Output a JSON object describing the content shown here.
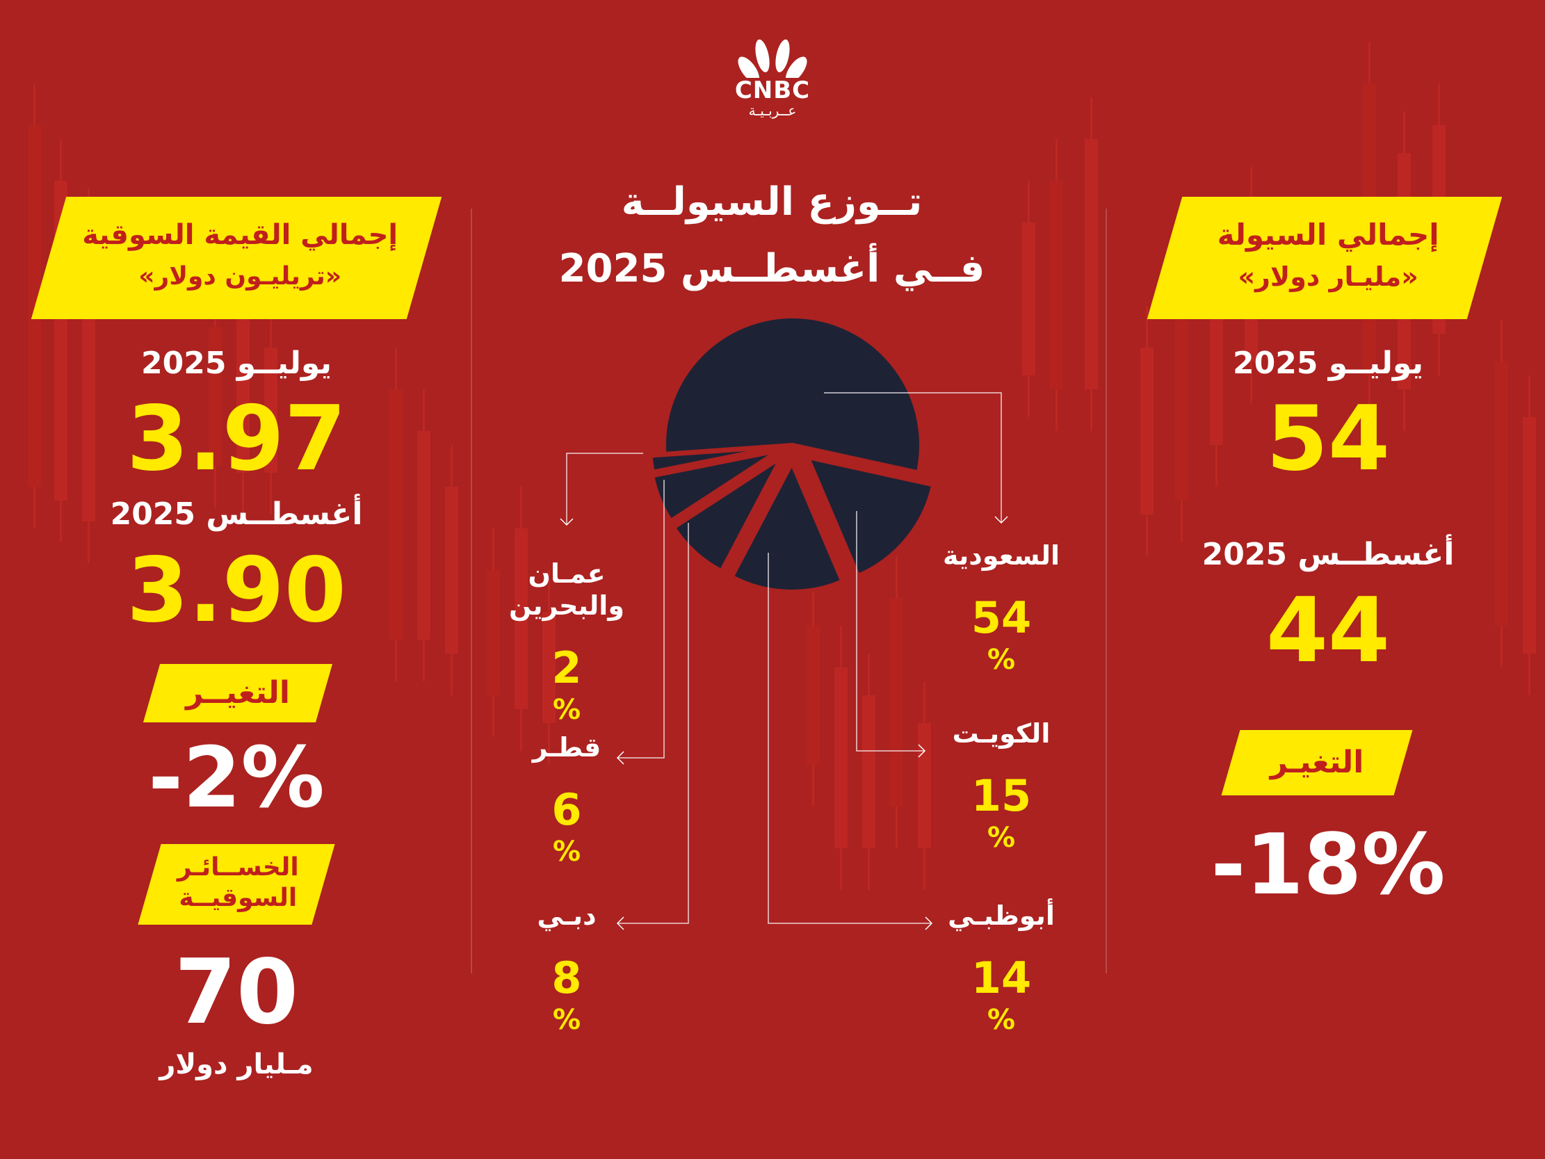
{
  "brand": {
    "name": "CNBC",
    "sub": "عــربـيـة"
  },
  "center": {
    "title_line1": "تــوزع السيولــة",
    "title_line2": "فــي أغسطــس 2025"
  },
  "left_panel": {
    "banner_line1": "إجمالي القيمة السوقية",
    "banner_line2": "«تريليـون دولار»",
    "july_label": "يوليــو 2025",
    "july_value": "3.97",
    "aug_label": "أغسطــس 2025",
    "aug_value": "3.90",
    "change_label": "التغيــر",
    "change_value": "-2%",
    "losses_line1": "الخســائـر",
    "losses_line2": "السوقيــة",
    "losses_value": "70",
    "losses_unit": "مـليار دولار"
  },
  "right_panel": {
    "banner_line1": "إجمالي السيولة",
    "banner_line2": "«مليـار دولار»",
    "july_label": "يوليــو 2025",
    "july_value": "54",
    "aug_label": "أغسطــس 2025",
    "aug_value": "44",
    "change_label": "التغيـر",
    "change_value": "-18%"
  },
  "chart_data": {
    "type": "pie",
    "unit": "%",
    "title": "تــوزع السيولــة فــي أغسطــس 2025",
    "slices": [
      {
        "label": "السعودية",
        "value": 54
      },
      {
        "label": "الكويـت",
        "value": 15
      },
      {
        "label": "أبوظبـي",
        "value": 14
      },
      {
        "label": "دبـي",
        "value": 8
      },
      {
        "label": "قطـر",
        "value": 6
      },
      {
        "label": "عمـان والبحرين",
        "value": 2
      }
    ],
    "colors": {
      "slice": "#1e2235",
      "gap": "#ab2220",
      "value_text": "#ffea00",
      "label_text": "#ffffff"
    }
  }
}
